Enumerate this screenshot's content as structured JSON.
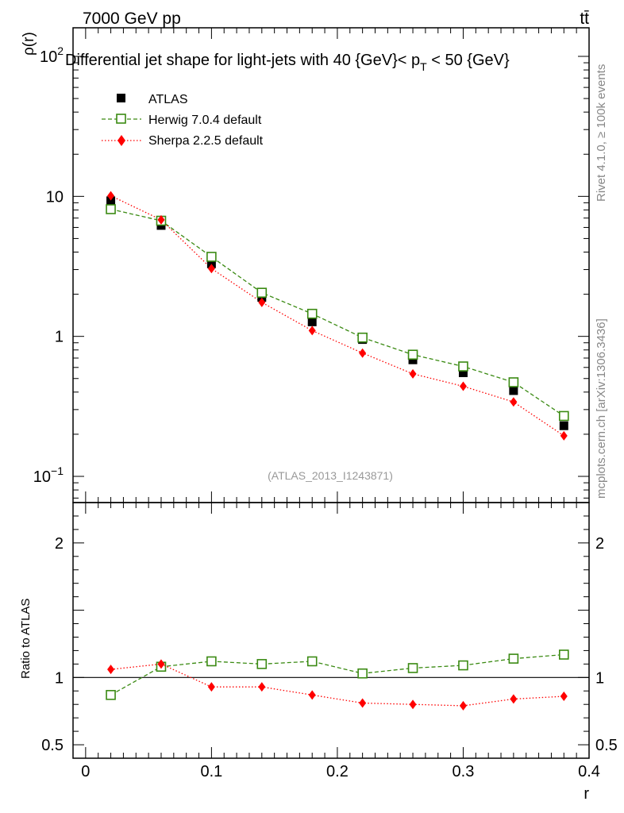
{
  "header": {
    "left": "7000 GeV pp",
    "right": "tt̄"
  },
  "side_text": {
    "rivet": "Rivet 4.1.0, ≥ 100k events",
    "mcplots": "mcplots.cern.ch [arXiv:1306.3436]"
  },
  "chart_data": [
    {
      "panel": "main",
      "type": "scatter",
      "title": "Differential jet shape for light-jets with 40 {GeV}< p_T < 50 {GeV}",
      "title_parts": {
        "main": "Differential jet shape for light-jets with 40 {GeV}< p",
        "sub": "T",
        "tail": " < 50 {GeV}"
      },
      "ylabel": "ρ(r)",
      "yscale": "log",
      "ylim": [
        0.065,
        160
      ],
      "xlim": [
        -0.01,
        0.4
      ],
      "y_ticks": [
        {
          "value": 100,
          "label": "10",
          "sup": "2"
        },
        {
          "value": 10,
          "label": "10",
          "sup": ""
        },
        {
          "value": 1,
          "label": "1",
          "sup": ""
        },
        {
          "value": 0.1,
          "label": "10",
          "sup": "−1"
        }
      ],
      "watermark": "(ATLAS_2013_I1243871)",
      "x": [
        0.02,
        0.06,
        0.1,
        0.14,
        0.18,
        0.22,
        0.26,
        0.3,
        0.34,
        0.38
      ],
      "series": [
        {
          "name": "ATLAS",
          "style": "data",
          "color": "#000000",
          "values": [
            9.3,
            6.2,
            3.3,
            1.9,
            1.27,
            0.95,
            0.68,
            0.55,
            0.41,
            0.23
          ]
        },
        {
          "name": "Herwig 7.0.4 default",
          "style": "open-square-dashed",
          "color": "#3a8a12",
          "values": [
            8.1,
            6.7,
            3.7,
            2.05,
            1.45,
            0.98,
            0.74,
            0.61,
            0.47,
            0.27
          ]
        },
        {
          "name": "Sherpa 2.2.5 default",
          "style": "diamond-dotted",
          "color": "#ff0000",
          "values": [
            10.1,
            6.8,
            3.05,
            1.75,
            1.1,
            0.76,
            0.54,
            0.44,
            0.34,
            0.195
          ]
        }
      ]
    },
    {
      "panel": "ratio",
      "type": "line",
      "ylabel": "Ratio to ATLAS",
      "xlabel": "r",
      "ylim": [
        0.4,
        2.3
      ],
      "xlim": [
        -0.01,
        0.4
      ],
      "x_ticks": [
        {
          "value": 0,
          "label": "0"
        },
        {
          "value": 0.1,
          "label": "0.1"
        },
        {
          "value": 0.2,
          "label": "0.2"
        },
        {
          "value": 0.3,
          "label": "0.3"
        },
        {
          "value": 0.4,
          "label": "0.4"
        }
      ],
      "y_ticks": [
        {
          "value": 2,
          "label": "2"
        },
        {
          "value": 1,
          "label": "1"
        },
        {
          "value": 0.5,
          "label": "0.5"
        }
      ],
      "reference_line": 1,
      "x": [
        0.02,
        0.06,
        0.1,
        0.14,
        0.18,
        0.22,
        0.26,
        0.3,
        0.34,
        0.38
      ],
      "series": [
        {
          "name": "Herwig 7.0.4 default",
          "color": "#3a8a12",
          "values": [
            0.87,
            1.08,
            1.12,
            1.1,
            1.12,
            1.03,
            1.07,
            1.09,
            1.14,
            1.17
          ]
        },
        {
          "name": "Sherpa 2.2.5 default",
          "color": "#ff0000",
          "values": [
            1.06,
            1.1,
            0.93,
            0.93,
            0.87,
            0.81,
            0.8,
            0.79,
            0.84,
            0.86
          ]
        }
      ]
    }
  ]
}
